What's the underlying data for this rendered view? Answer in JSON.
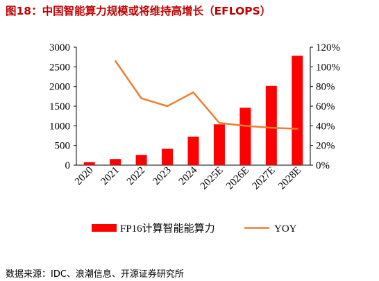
{
  "title": "图18：中国智能算力规模或将维持高增长（EFLOPS）",
  "source": "数据来源：IDC、浪潮信息、开源证券研究所",
  "chart_data": {
    "type": "bar",
    "categories": [
      "2020",
      "2021",
      "2022",
      "2023",
      "2024",
      "2025E",
      "2026E",
      "2027E",
      "2028E"
    ],
    "series": [
      {
        "name": "FP16计算智能能算力",
        "type": "bar",
        "axis": "left",
        "color": "#ff0000",
        "values": [
          75,
          155,
          260,
          415,
          725,
          1037,
          1460,
          2016,
          2781
        ]
      },
      {
        "name": "YOY",
        "type": "line",
        "axis": "right",
        "color": "#ed7d31",
        "values": [
          null,
          106,
          68,
          60,
          74,
          43,
          40,
          38,
          37
        ]
      }
    ],
    "yleft": {
      "min": 0,
      "max": 3000,
      "ticks": [
        "0",
        "500",
        "1000",
        "1500",
        "2000",
        "2500",
        "3000"
      ]
    },
    "yright": {
      "min": 0,
      "max": 120,
      "ticks": [
        "0%",
        "20%",
        "40%",
        "60%",
        "80%",
        "100%",
        "120%"
      ]
    },
    "legend_placement": "bottom",
    "grid": false
  }
}
